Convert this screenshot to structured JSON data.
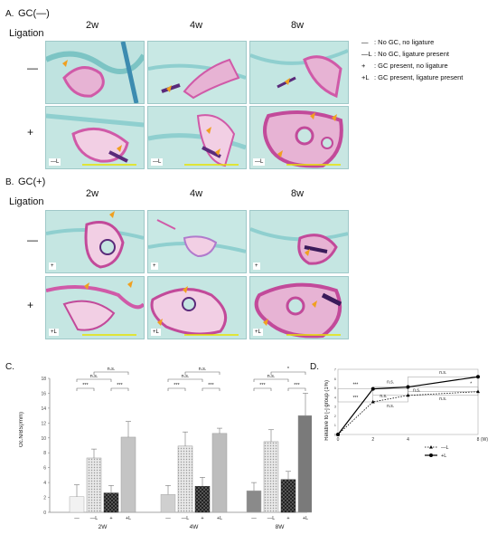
{
  "panelA": {
    "letter": "A.",
    "gc_label": "GC(—)",
    "ligation_label": "Ligation",
    "columns": [
      "2w",
      "4w",
      "8w"
    ],
    "row_labels": [
      "—",
      "+"
    ],
    "tags_row2": [
      "—L",
      "—L",
      "—L"
    ]
  },
  "panelB": {
    "letter": "B.",
    "gc_label": "GC(+)",
    "ligation_label": "Ligation",
    "columns": [
      "2w",
      "4w",
      "8w"
    ],
    "row_labels": [
      "—",
      "+"
    ],
    "tags_row1": [
      "+",
      "+",
      "+"
    ],
    "tags_row2": [
      "+L",
      "+L",
      "+L"
    ]
  },
  "legend": [
    {
      "symbol": "—",
      "text": ": No GC, no ligature"
    },
    {
      "symbol": "—L",
      "text": ": No GC, ligature present"
    },
    {
      "symbol": "+",
      "text": ": GC present, no ligature"
    },
    {
      "symbol": "+L",
      "text": ": GC present, ligature present"
    }
  ],
  "colors": {
    "tissue_bg": "#bfe3e0",
    "tissue_fiber": "#7cc4c4",
    "bone_pink": "#d05aa8",
    "bone_light": "#e7b3d4",
    "arrow": "#f0a020",
    "scale_bar": "#e8e400"
  },
  "panelC": {
    "letter": "C.",
    "ylabel": "Oc.N/BS(/mm)",
    "sig_labels": {
      "star3": "***",
      "star1": "*",
      "ns": "n.s."
    }
  },
  "panelD": {
    "letter": "D.",
    "ylabel": "Relative to [-] group (1%)",
    "xunit": "(W)",
    "legend_minusL": "—L",
    "legend_plusL": "+L",
    "sig_labels": {
      "star3": "***",
      "star1": "*",
      "ns": "n.s."
    }
  },
  "chart_data": [
    {
      "type": "bar",
      "title": "",
      "ylabel": "Oc.N/BS(/mm)",
      "ylim": [
        0,
        18
      ],
      "yticks": [
        0,
        2,
        4,
        6,
        8,
        10,
        12,
        14,
        16,
        18
      ],
      "groups": [
        "2W",
        "4W",
        "8W"
      ],
      "categories": [
        "—",
        "—L",
        "+",
        "+L"
      ],
      "series": [
        {
          "group": "2W",
          "values": [
            2.1,
            7.3,
            2.6,
            10.1
          ],
          "errors": [
            1.6,
            1.2,
            1.0,
            2.1
          ]
        },
        {
          "group": "4W",
          "values": [
            2.4,
            8.9,
            3.5,
            10.6
          ],
          "errors": [
            1.2,
            1.9,
            1.2,
            0.7
          ]
        },
        {
          "group": "8W",
          "values": [
            2.9,
            9.5,
            4.4,
            13.0
          ],
          "errors": [
            1.1,
            1.6,
            1.1,
            3.0
          ]
        }
      ]
    },
    {
      "type": "line",
      "title": "",
      "ylabel": "Relative to [-] group (1%)",
      "xlabel": "(W)",
      "x": [
        0,
        2,
        4,
        8
      ],
      "xlim": [
        0,
        8
      ],
      "ylim": [
        0,
        7
      ],
      "yticks": [
        0,
        1,
        2,
        3,
        4,
        5,
        6,
        7
      ],
      "series": [
        {
          "name": "—L",
          "values": [
            0,
            3.5,
            4.2,
            4.6
          ],
          "style": "dotted-triangle"
        },
        {
          "name": "+L",
          "values": [
            0,
            4.9,
            5.1,
            6.2
          ],
          "style": "solid-circle"
        }
      ]
    }
  ]
}
